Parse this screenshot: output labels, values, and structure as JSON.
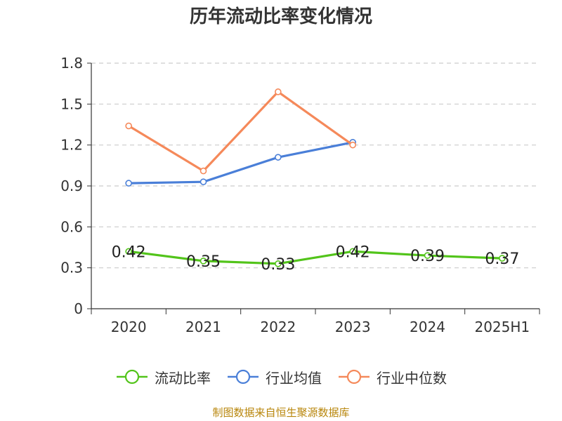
{
  "chart_data": {
    "type": "line",
    "title": "历年流动比率变化情况",
    "categories": [
      "2020",
      "2021",
      "2022",
      "2023",
      "2024",
      "2025H1"
    ],
    "ylim": [
      0,
      1.8
    ],
    "yticks": [
      "0",
      "0.3",
      "0.6",
      "0.9",
      "1.2",
      "1.5",
      "1.8"
    ],
    "grid": true,
    "legend_position": "bottom",
    "series": [
      {
        "name": "流动比率",
        "color": "#52c41a",
        "values": [
          0.42,
          0.35,
          0.33,
          0.42,
          0.39,
          0.37
        ],
        "labels": [
          "0.42",
          "0.35",
          "0.33",
          "0.42",
          "0.39",
          "0.37"
        ]
      },
      {
        "name": "行业均值",
        "color": "#4a7fd8",
        "values": [
          0.92,
          0.93,
          1.11,
          1.22,
          null,
          null
        ]
      },
      {
        "name": "行业中位数",
        "color": "#f5895a",
        "values": [
          1.34,
          1.01,
          1.59,
          1.2,
          null,
          null
        ]
      }
    ]
  },
  "source": "制图数据来自恒生聚源数据库"
}
